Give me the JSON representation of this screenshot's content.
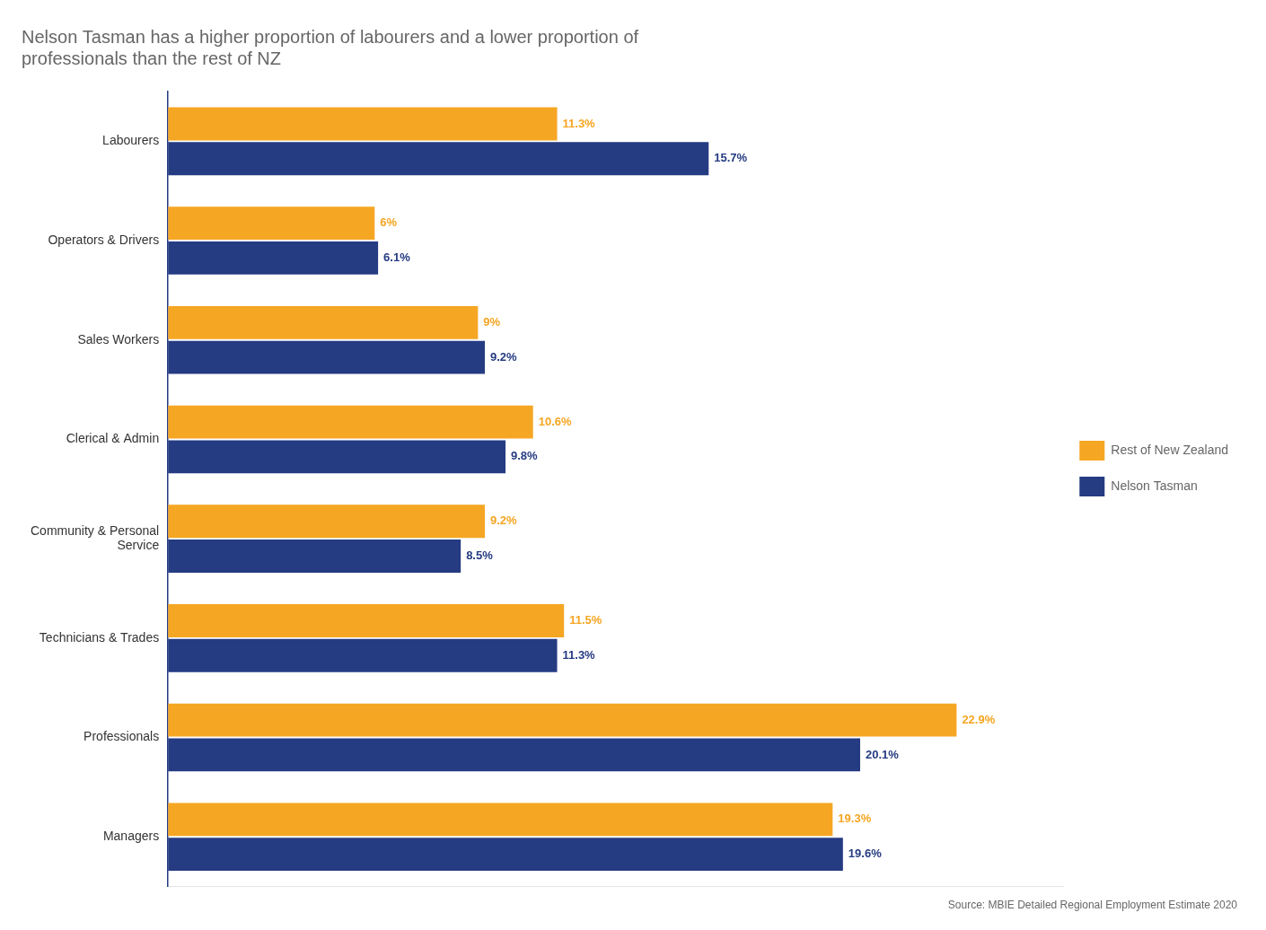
{
  "chart_data": {
    "type": "bar",
    "orientation": "horizontal",
    "title": "Nelson Tasman has a higher proportion of labourers and a lower proportion of\nprofessionals than the rest of NZ",
    "categories": [
      "Labourers",
      "Operators & Drivers",
      "Sales Workers",
      "Clerical & Admin",
      "Community & Personal\nService",
      "Technicians & Trades",
      "Professionals",
      "Managers"
    ],
    "series": [
      {
        "name": "Rest of New Zealand",
        "color": "#F5A623",
        "values": [
          11.3,
          6.0,
          9.0,
          10.6,
          9.2,
          11.5,
          22.9,
          19.3
        ],
        "value_labels": [
          "11.3%",
          "6%",
          "9%",
          "10.6%",
          "9.2%",
          "11.5%",
          "22.9%",
          "19.3%"
        ]
      },
      {
        "name": "Nelson Tasman",
        "color": "#253B82",
        "values": [
          15.7,
          6.1,
          9.2,
          9.8,
          8.5,
          11.3,
          20.1,
          19.6
        ],
        "value_labels": [
          "15.7%",
          "6.1%",
          "9.2%",
          "9.8%",
          "8.5%",
          "11.3%",
          "20.1%",
          "19.6%"
        ]
      }
    ],
    "xlim": [
      0,
      26
    ],
    "data_labels": true,
    "tick_labels": "y",
    "grid": false,
    "legend": "right",
    "annotations": [
      "Source: MBIE Detailed Regional Employment Estimate 2020"
    ]
  }
}
